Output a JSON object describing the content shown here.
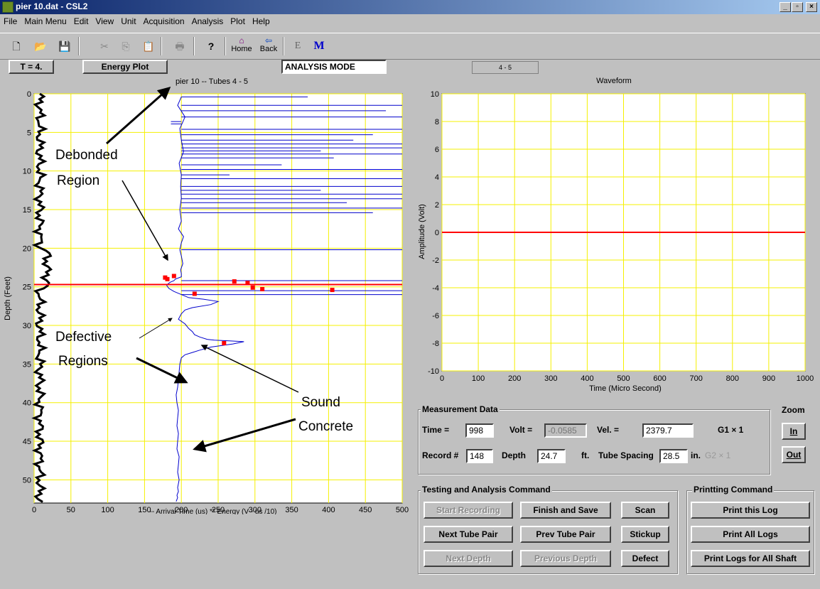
{
  "window": {
    "title": "pier 10.dat - CSL2",
    "min": "_",
    "max": "▫",
    "close": "×"
  },
  "menu": [
    "File",
    "Main Menu",
    "Edit",
    "View",
    "Unit",
    "Acquisition",
    "Analysis",
    "Plot",
    "Help"
  ],
  "toolbar": {
    "home_label": "Home",
    "back_label": "Back",
    "e_label": "E",
    "m_label": "M"
  },
  "controls": {
    "t_button": "T = 4.",
    "energy_button": "Energy Plot",
    "mode_label": "ANALYSIS MODE",
    "tube_indicator": "4 - 5"
  },
  "left_plot": {
    "title": "pier 10 -- Tubes 4 - 5",
    "ylabel": "Depth (Feet)",
    "xlabel": "-- Arrival Time (us)  ** Energy (V - us /10)",
    "x_ticks": [
      "0",
      "50",
      "100",
      "150",
      "200",
      "250",
      "300",
      "350",
      "400",
      "450",
      "500"
    ],
    "y_ticks": [
      "0",
      "5",
      "10",
      "15",
      "20",
      "25",
      "30",
      "35",
      "40",
      "45",
      "50"
    ],
    "annotations": {
      "debonded": [
        "Debonded",
        "Region"
      ],
      "defective": [
        "Defective",
        "Regions"
      ],
      "sound": [
        "Sound",
        "Concrete"
      ]
    }
  },
  "right_plot": {
    "title": "Waveform",
    "ylabel": "Amplitude (Volt)",
    "xlabel": "Time (Micro Second)",
    "x_ticks": [
      "0",
      "100",
      "200",
      "300",
      "400",
      "500",
      "600",
      "700",
      "800",
      "900",
      "1000"
    ],
    "y_ticks": [
      "10",
      "8",
      "6",
      "4",
      "2",
      "0",
      "-2",
      "-4",
      "-6",
      "-8",
      "-10"
    ]
  },
  "chart_data": [
    {
      "type": "line",
      "title": "pier 10 -- Tubes 4 - 5",
      "xlabel": "-- Arrival Time (us)  ** Energy (V - us /10)",
      "ylabel": "Depth (Feet)",
      "xlim": [
        0,
        500
      ],
      "ylim": [
        0,
        53
      ],
      "y_inverted": true,
      "grid": true,
      "marker_depth": 24.7,
      "series": [
        {
          "color": "#0000cc",
          "x": [
            200,
            195,
            205,
            198,
            200,
            203,
            197,
            200,
            199,
            200,
            198,
            200,
            196,
            203,
            200,
            198,
            200,
            202,
            199,
            200,
            200,
            192,
            190,
            185,
            182,
            180,
            183,
            190,
            200,
            210,
            230,
            250,
            240,
            215,
            205,
            200,
            196,
            205,
            210,
            215,
            218,
            225,
            235,
            245,
            265,
            285,
            270,
            240,
            225,
            215,
            205,
            200,
            198,
            197,
            196,
            195,
            193,
            194,
            196,
            195,
            194,
            196,
            195,
            194,
            197,
            196,
            195,
            197,
            195,
            196,
            194,
            195,
            193
          ],
          "y": [
            0.4,
            1.5,
            3,
            4.5,
            6,
            7.5,
            9,
            10.5,
            12,
            13.5,
            15,
            16.5,
            17.5,
            18.5,
            19.3,
            20.2,
            21,
            22,
            22.8,
            23.3,
            23.7,
            24,
            24.2,
            24.4,
            24.6,
            24.8,
            25.2,
            25.6,
            26,
            26.4,
            26.6,
            26.9,
            27.3,
            27.7,
            28,
            28.5,
            29.2,
            29.8,
            30.4,
            30.8,
            31.2,
            31.5,
            31.8,
            31.9,
            32.0,
            32.1,
            32.4,
            32.8,
            33.2,
            33.5,
            33.8,
            34.2,
            35,
            36,
            37,
            38,
            39,
            40,
            41,
            42,
            43,
            44,
            45,
            46,
            47,
            48,
            49,
            50,
            51,
            51.5,
            52,
            52.3,
            52.8
          ]
        },
        {
          "color": "#ff0000",
          "x": [
            178,
            181,
            190,
            272,
            290,
            297,
            310,
            405,
            218,
            258
          ],
          "y": [
            23.8,
            24.0,
            23.6,
            24.3,
            24.5,
            25.1,
            25.3,
            25.4,
            25.9,
            32.3
          ]
        }
      ]
    },
    {
      "type": "line",
      "title": "Waveform",
      "xlabel": "Time (Micro Second)",
      "ylabel": "Amplitude (Volt)",
      "xlim": [
        0,
        1000
      ],
      "ylim": [
        -10,
        10
      ],
      "grid": true,
      "series": [
        {
          "color": "#ff0000",
          "x": [
            0,
            1000
          ],
          "y": [
            0,
            0
          ]
        }
      ]
    }
  ],
  "measurement": {
    "group_title": "Measurement Data",
    "time_label": "Time =",
    "time_value": "998",
    "volt_label": "Volt =",
    "volt_value": "-0.0585",
    "vel_label": "Vel. =",
    "vel_value": "2379.7",
    "g1_label": "G1 × 1",
    "record_label": "Record #",
    "record_value": "148",
    "depth_label": "Depth",
    "depth_value": "24.7",
    "depth_unit": "ft.",
    "spacing_label": "Tube Spacing",
    "spacing_value": "28.5",
    "spacing_unit": "in.",
    "g2_label": "G2 × 1"
  },
  "zoom": {
    "title": "Zoom",
    "in_label": "In",
    "out_label": "Out"
  },
  "testing": {
    "group_title": "Testing and Analysis Command",
    "start_recording": "Start Recording",
    "finish_save": "Finish and Save",
    "scan": "Scan",
    "next_tube_pair": "Next Tube Pair",
    "prev_tube_pair": "Prev Tube Pair",
    "stickup": "Stickup",
    "next_depth": "Next Depth",
    "previous_depth": "Previous Depth",
    "defect": "Defect"
  },
  "printing": {
    "group_title": "Printting Command",
    "print_log": "Print this Log",
    "print_all": "Print All Logs",
    "print_shaft": "Print Logs for All Shaft"
  }
}
